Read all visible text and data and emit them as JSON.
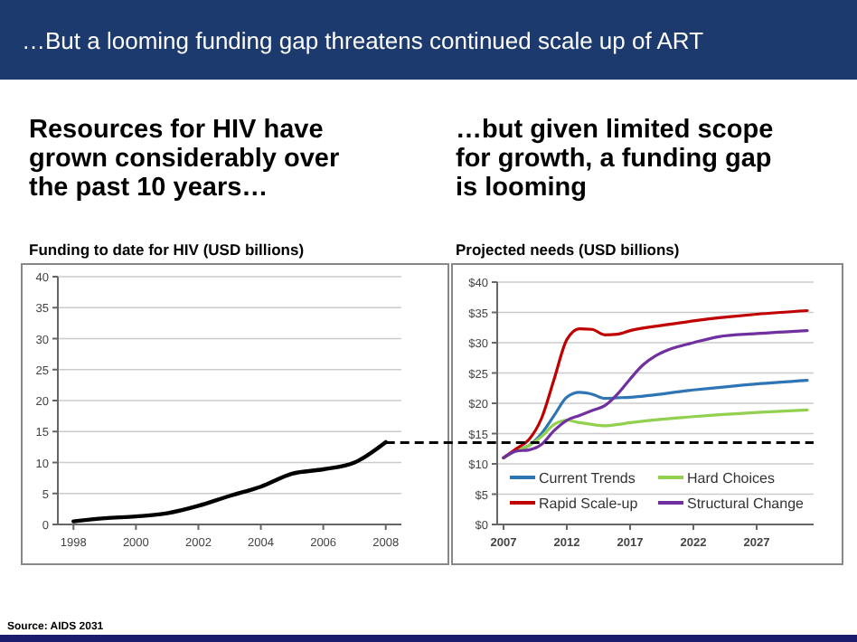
{
  "chart_data": [
    {
      "type": "line",
      "title": "Funding to date for HIV (USD billions)",
      "annotations": [
        "…But a looming funding gap threatens continued scale up of ART",
        "Resources for HIV have grown considerably over the past 10 years…",
        "Source: AIDS 2031"
      ],
      "x": [
        1998,
        1999,
        2000,
        2001,
        2002,
        2003,
        2004,
        2005,
        2006,
        2007,
        2008
      ],
      "series": [
        {
          "color": "#000000",
          "values": [
            0.5,
            1.0,
            1.3,
            1.8,
            3.0,
            4.6,
            6.1,
            8.2,
            8.9,
            10.0,
            13.3
          ]
        }
      ],
      "xlim": [
        1997.5,
        2008.5
      ],
      "xticks": [
        1998,
        2000,
        2002,
        2004,
        2006,
        2008
      ],
      "ylim": [
        0,
        40
      ],
      "yticks": [
        0,
        5,
        10,
        15,
        20,
        25,
        30,
        35,
        40
      ],
      "grid": "y",
      "legend": false
    },
    {
      "type": "line",
      "title": "Projected needs (USD billions)",
      "annotations": [
        "…but given limited scope for growth, a funding gap is looming"
      ],
      "series": [
        {
          "name": "Current Trends",
          "color": "#2e75b6",
          "x": [
            2007,
            2008,
            2009,
            2010,
            2011,
            2012,
            2013,
            2014,
            2015,
            2016,
            2017,
            2022,
            2027,
            2031
          ],
          "values": [
            11,
            12.2,
            13,
            15,
            18,
            21,
            21.8,
            21.5,
            20.8,
            20.9,
            21,
            22.2,
            23.2,
            23.8
          ]
        },
        {
          "name": "Hard Choices",
          "color": "#92d050",
          "x": [
            2007,
            2008,
            2009,
            2010,
            2011,
            2012,
            2013,
            2014,
            2015,
            2016,
            2017,
            2022,
            2027,
            2031
          ],
          "values": [
            11,
            12.2,
            13,
            14.5,
            16.5,
            17.2,
            16.8,
            16.5,
            16.3,
            16.5,
            16.8,
            17.8,
            18.5,
            18.9
          ]
        },
        {
          "name": "Rapid Scale-up",
          "color": "#c00000",
          "x": [
            2007,
            2008,
            2009,
            2010,
            2011,
            2012,
            2013,
            2014,
            2015,
            2016,
            2017,
            2020,
            2022,
            2025,
            2027,
            2031
          ],
          "values": [
            11,
            12.5,
            14,
            17.5,
            24,
            30.5,
            32.3,
            32.2,
            31.3,
            31.4,
            32,
            33,
            33.6,
            34.3,
            34.7,
            35.3
          ]
        },
        {
          "name": "Structural Change",
          "color": "#7030a0",
          "x": [
            2007,
            2008,
            2009,
            2010,
            2011,
            2012,
            2013,
            2014,
            2015,
            2016,
            2017,
            2018,
            2019,
            2020,
            2022,
            2024,
            2027,
            2031
          ],
          "values": [
            11,
            12.1,
            12.3,
            13.2,
            15.5,
            17.2,
            18,
            18.8,
            19.6,
            21.5,
            24,
            26.3,
            27.8,
            28.8,
            30,
            31,
            31.5,
            32
          ]
        }
      ],
      "xlim": [
        2006.5,
        2031.5
      ],
      "xticks": [
        2007,
        2012,
        2017,
        2022,
        2027
      ],
      "ylim": [
        0,
        40
      ],
      "yticks": [
        {
          "value": 0,
          "label": "$0"
        },
        {
          "value": 5,
          "label": "$5"
        },
        {
          "value": 10,
          "label": "$10"
        },
        {
          "value": 15,
          "label": "$15"
        },
        {
          "value": 20,
          "label": "$20"
        },
        {
          "value": 25,
          "label": "$25"
        },
        {
          "value": 30,
          "label": "$30"
        },
        {
          "value": 35,
          "label": "$35"
        },
        {
          "value": 40,
          "label": "$40"
        }
      ],
      "grid": "y",
      "legend": "bottom right",
      "ref_lines": [
        {
          "axis": "y",
          "value": 13.5,
          "color": "#000000",
          "line_style": "dashed"
        }
      ]
    }
  ]
}
